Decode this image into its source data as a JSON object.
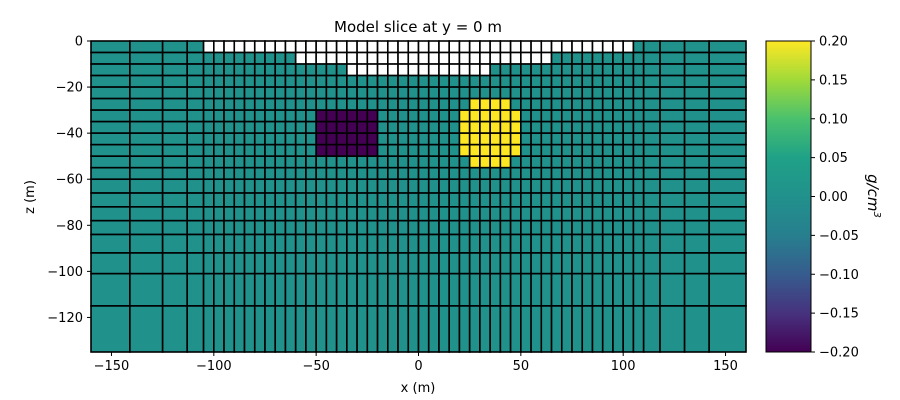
{
  "chart_data": {
    "type": "heatmap",
    "title": "Model slice at y = 0 m",
    "xlabel": "x (m)",
    "ylabel": "z (m)",
    "xlim": [
      -160,
      160
    ],
    "ylim": [
      -135,
      0
    ],
    "x_ticks": [
      -150,
      -100,
      -50,
      0,
      50,
      100,
      150
    ],
    "y_ticks": [
      0,
      -20,
      -40,
      -60,
      -80,
      -100,
      -120
    ],
    "x_tick_labels": [
      "−150",
      "−100",
      "−50",
      "0",
      "50",
      "100",
      "150"
    ],
    "y_tick_labels": [
      "0",
      "−20",
      "−40",
      "−60",
      "−80",
      "−100",
      "−120"
    ],
    "x_cell_edges": [
      -160,
      -141,
      -125,
      -113,
      -105,
      -100,
      -95,
      -90,
      -85,
      -80,
      -75,
      -70,
      -65,
      -60,
      -55,
      -50,
      -45,
      -40,
      -35,
      -30,
      -25,
      -20,
      -15,
      -10,
      -5,
      0,
      5,
      10,
      15,
      20,
      25,
      30,
      35,
      40,
      45,
      50,
      55,
      60,
      65,
      70,
      75,
      80,
      85,
      90,
      95,
      100,
      105,
      110,
      118,
      130,
      142,
      160
    ],
    "z_cell_edges": [
      0,
      -5,
      -10,
      -15,
      -20,
      -25,
      -30,
      -35,
      -40,
      -45,
      -50,
      -55,
      -60,
      -66,
      -72,
      -78,
      -84,
      -92,
      -101,
      -115,
      -135
    ],
    "background_value": 0.0,
    "air_cells_note": "",
    "air_cells": [
      {
        "x": [
          -105,
          105
        ],
        "z": [
          -5,
          0
        ]
      },
      {
        "x": [
          -60,
          65
        ],
        "z": [
          -10,
          -5
        ]
      },
      {
        "x": [
          -35,
          35
        ],
        "z": [
          -15,
          -10
        ]
      }
    ],
    "anomalies": [
      {
        "name": "",
        "value": -0.2,
        "x": [
          -50,
          -20
        ],
        "z": [
          -50,
          -30
        ]
      },
      {
        "name": "",
        "value": 0.2,
        "x": [
          25,
          45
        ],
        "z": [
          -55,
          -25
        ]
      },
      {
        "name": "",
        "value": 0.2,
        "x": [
          20,
          50
        ],
        "z": [
          -50,
          -30
        ]
      }
    ],
    "colorbar": {
      "label": "g/cm³",
      "label_base": "g/cm",
      "label_sup": "3",
      "colormap": "viridis",
      "vmin": -0.2,
      "vmax": 0.2,
      "ticks": [
        0.2,
        0.15,
        0.1,
        0.05,
        0.0,
        -0.05,
        -0.1,
        -0.15,
        -0.2
      ],
      "tick_labels": [
        "0.20",
        "0.15",
        "0.10",
        "0.05",
        "0.00",
        "−0.05",
        "−0.10",
        "−0.15",
        "−0.20"
      ]
    },
    "grid": false,
    "cell_edge_color": "#000000"
  }
}
